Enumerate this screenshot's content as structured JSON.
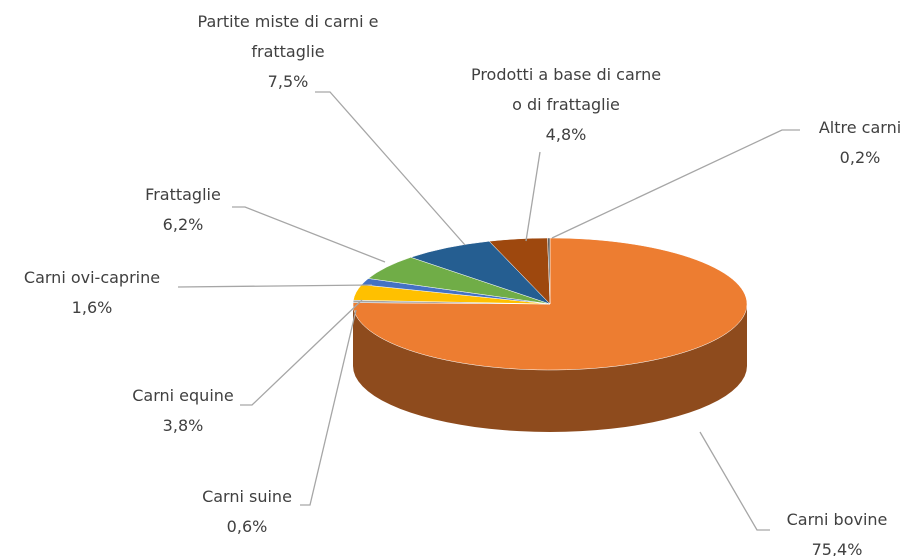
{
  "chart_data": {
    "type": "pie",
    "categories": [
      "Carni bovine",
      "Carni suine",
      "Carni equine",
      "Carni ovi-caprine",
      "Frattaglie",
      "Partite miste di carni e frattaglie",
      "Prodotti a base di carne o di frattaglie",
      "Altre carni"
    ],
    "values": [
      75.4,
      0.6,
      3.8,
      1.6,
      6.2,
      7.5,
      4.8,
      0.2
    ],
    "value_labels": [
      "75,4%",
      "0,6%",
      "3,8%",
      "1,6%",
      "6,2%",
      "7,5%",
      "4,8%",
      "0,2%"
    ],
    "colors": [
      "#ed7d31",
      "#a5a5a5",
      "#ffc000",
      "#4472c4",
      "#70ad47",
      "#255e91",
      "#9e480e",
      "#636363"
    ]
  }
}
